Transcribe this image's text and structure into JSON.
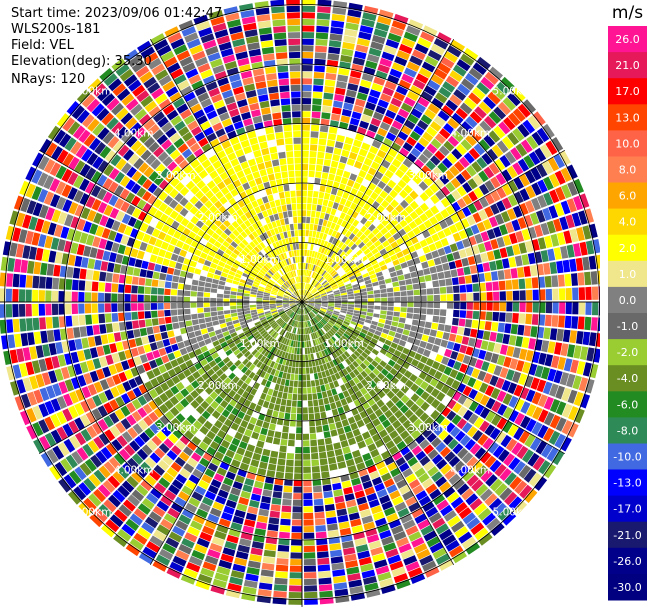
{
  "header": {
    "start_time": "Start time: 2023/09/06 01:42:47",
    "instrument": "WLS200s-181",
    "field": "Field: VEL",
    "elevation": "Elevation(deg): 35.30",
    "nrays": "NRays: 120"
  },
  "chart_data": {
    "type": "heatmap",
    "projection": "polar-ppi",
    "field": "VEL",
    "elevation_deg": 35.3,
    "n_rays": 120,
    "range_rings_km": [
      1.0,
      2.0,
      3.0,
      4.0,
      5.0
    ],
    "range_ring_labels": [
      "1.00km",
      "2.00km",
      "3.00km",
      "4.00km",
      "5.00km"
    ],
    "azimuth_spokes_deg": [
      0,
      30,
      60,
      90,
      120,
      150,
      180,
      210,
      240,
      270,
      300,
      330
    ],
    "max_range_km": 5.1,
    "colorbar": {
      "unit": "m/s",
      "ticks": [
        "26.0",
        "21.0",
        "17.0",
        "13.0",
        "10.0",
        "8.0",
        "6.0",
        "4.0",
        "2.0",
        "1.0",
        "0.0",
        "-1.0",
        "-2.0",
        "-4.0",
        "-6.0",
        "-8.0",
        "-10.0",
        "-13.0",
        "-17.0",
        "-21.0",
        "-26.0",
        "-30.0"
      ],
      "colors": [
        "#ff1493",
        "#e6195a",
        "#ff0000",
        "#ff4500",
        "#ff6347",
        "#ff7f50",
        "#ffa500",
        "#ffd700",
        "#ffff00",
        "#f0e68c",
        "#808080",
        "#696969",
        "#9acd32",
        "#6b8e23",
        "#228b22",
        "#2e8b57",
        "#4169e1",
        "#0000ff",
        "#0000cd",
        "#191970",
        "#00008b",
        "#000080"
      ]
    },
    "regions": [
      {
        "name": "north",
        "azimuth_deg": [
          -75,
          70
        ],
        "range_km": [
          0,
          3.0
        ],
        "dominant_value_ms": 2.0
      },
      {
        "name": "east",
        "azimuth_deg": [
          70,
          115
        ],
        "range_km": [
          0,
          2.5
        ],
        "dominant_value_ms": 0.0
      },
      {
        "name": "south",
        "azimuth_deg": [
          115,
          245
        ],
        "range_km": [
          0,
          3.0
        ],
        "dominant_value_ms": -4.0
      },
      {
        "name": "west",
        "azimuth_deg": [
          245,
          285
        ],
        "range_km": [
          0,
          2.2
        ],
        "dominant_value_ms": 0.0
      },
      {
        "name": "outer-noise",
        "azimuth_deg": [
          0,
          360
        ],
        "range_km": [
          3.0,
          5.1
        ],
        "dominant_value_ms": null
      }
    ]
  }
}
